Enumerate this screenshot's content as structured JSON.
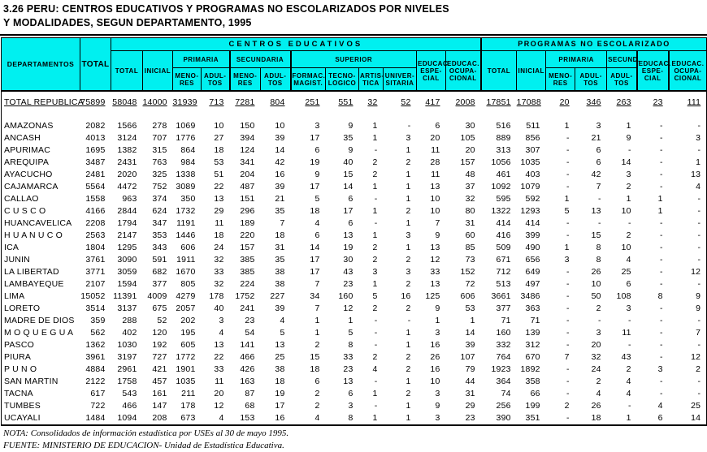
{
  "page": {
    "title_line1": "3.26   PERU: CENTROS EDUCATIVOS Y PROGRAMAS NO ESCOLARIZADOS POR NIVELES",
    "title_line2": "Y MODALIDADES, SEGUN DEPARTAMENTO, 1995"
  },
  "header": {
    "departamentos": "DEPARTAMENTOS",
    "total": "TOTAL",
    "centros_educativos": "CENTROS EDUCATIVOS",
    "programas_no_escolarizado": "PROGRAMAS NO ESCOLARIZADO",
    "ce": {
      "total": "TOTAL",
      "inicial": "INICIAL",
      "primaria": "PRIMARIA",
      "secundaria": "SECUNDARIA",
      "superior": "SUPERIOR",
      "prim_menores": "MENO-\nRES",
      "prim_adultos": "ADUL-\nTOS",
      "sec_menores": "MENO-\nRES",
      "sec_adultos": "ADUL-\nTOS",
      "formac_magist": "FORMAC.\nMAGIST.",
      "tecnologico": "TECNO-\nLOGICO",
      "artistica": "ARTIS-\nTICA",
      "universitaria": "UNIVER-\nSITARIA",
      "educ_especial": "EDUCAC.\nESPE-\nCIAL",
      "educ_ocupacional": "EDUCAC.\nOCUPA-\nCIONAL"
    },
    "pne": {
      "total": "TOTAL",
      "inicial": "INICIAL",
      "primaria": "PRIMARIA",
      "secund": "SECUND.",
      "prim_menores": "MENO-\nRES",
      "prim_adultos": "ADUL-\nTOS",
      "secund_adultos": "ADUL-\nTOS",
      "educ_especial": "EDUCAC.\nESPE-\nCIAL",
      "educ_ocupacional": "EDUCAC.\nOCUPA-\nCIONAL"
    }
  },
  "table": {
    "total_row": [
      "TOTAL REPUBLICA",
      "75899",
      "58048",
      "14000",
      "31939",
      "713",
      "7281",
      "804",
      "251",
      "551",
      "32",
      "52",
      "417",
      "2008",
      "17851",
      "17088",
      "20",
      "346",
      "263",
      "23",
      "111"
    ],
    "rows": [
      [
        "AMAZONAS",
        "2082",
        "1566",
        "278",
        "1069",
        "10",
        "150",
        "10",
        "3",
        "9",
        "1",
        "-",
        "6",
        "30",
        "516",
        "511",
        "1",
        "3",
        "1",
        "-",
        "-"
      ],
      [
        "ANCASH",
        "4013",
        "3124",
        "707",
        "1776",
        "27",
        "394",
        "39",
        "17",
        "35",
        "1",
        "3",
        "20",
        "105",
        "889",
        "856",
        "-",
        "21",
        "9",
        "-",
        "3"
      ],
      [
        "APURIMAC",
        "1695",
        "1382",
        "315",
        "864",
        "18",
        "124",
        "14",
        "6",
        "9",
        "-",
        "1",
        "11",
        "20",
        "313",
        "307",
        "-",
        "6",
        "-",
        "-",
        "-"
      ],
      [
        "AREQUIPA",
        "3487",
        "2431",
        "763",
        "984",
        "53",
        "341",
        "42",
        "19",
        "40",
        "2",
        "2",
        "28",
        "157",
        "1056",
        "1035",
        "-",
        "6",
        "14",
        "-",
        "1"
      ],
      [
        "AYACUCHO",
        "2481",
        "2020",
        "325",
        "1338",
        "51",
        "204",
        "16",
        "9",
        "15",
        "2",
        "1",
        "11",
        "48",
        "461",
        "403",
        "-",
        "42",
        "3",
        "-",
        "13"
      ],
      [
        "CAJAMARCA",
        "5564",
        "4472",
        "752",
        "3089",
        "22",
        "487",
        "39",
        "17",
        "14",
        "1",
        "1",
        "13",
        "37",
        "1092",
        "1079",
        "-",
        "7",
        "2",
        "-",
        "4"
      ],
      [
        "CALLAO",
        "1558",
        "963",
        "374",
        "350",
        "13",
        "151",
        "21",
        "5",
        "6",
        "-",
        "1",
        "10",
        "32",
        "595",
        "592",
        "1",
        "-",
        "1",
        "1",
        "-"
      ],
      [
        "C U S C O",
        "4166",
        "2844",
        "624",
        "1732",
        "29",
        "296",
        "35",
        "18",
        "17",
        "1",
        "2",
        "10",
        "80",
        "1322",
        "1293",
        "5",
        "13",
        "10",
        "1",
        "-"
      ],
      [
        "HUANCAVELICA",
        "2208",
        "1794",
        "347",
        "1191",
        "11",
        "189",
        "7",
        "4",
        "6",
        "-",
        "1",
        "7",
        "31",
        "414",
        "414",
        "-",
        "-",
        "-",
        "-",
        "-"
      ],
      [
        "H U A N U C O",
        "2563",
        "2147",
        "353",
        "1446",
        "18",
        "220",
        "18",
        "6",
        "13",
        "1",
        "3",
        "9",
        "60",
        "416",
        "399",
        "-",
        "15",
        "2",
        "-",
        "-"
      ],
      [
        "ICA",
        "1804",
        "1295",
        "343",
        "606",
        "24",
        "157",
        "31",
        "14",
        "19",
        "2",
        "1",
        "13",
        "85",
        "509",
        "490",
        "1",
        "8",
        "10",
        "-",
        "-"
      ],
      [
        "JUNIN",
        "3761",
        "3090",
        "591",
        "1911",
        "32",
        "385",
        "35",
        "17",
        "30",
        "2",
        "2",
        "12",
        "73",
        "671",
        "656",
        "3",
        "8",
        "4",
        "-",
        "-"
      ],
      [
        "LA LIBERTAD",
        "3771",
        "3059",
        "682",
        "1670",
        "33",
        "385",
        "38",
        "17",
        "43",
        "3",
        "3",
        "33",
        "152",
        "712",
        "649",
        "-",
        "26",
        "25",
        "-",
        "12"
      ],
      [
        "LAMBAYEQUE",
        "2107",
        "1594",
        "377",
        "805",
        "32",
        "224",
        "38",
        "7",
        "23",
        "1",
        "2",
        "13",
        "72",
        "513",
        "497",
        "-",
        "10",
        "6",
        "-",
        "-"
      ],
      [
        "LIMA",
        "15052",
        "11391",
        "4009",
        "4279",
        "178",
        "1752",
        "227",
        "34",
        "160",
        "5",
        "16",
        "125",
        "606",
        "3661",
        "3486",
        "-",
        "50",
        "108",
        "8",
        "9"
      ],
      [
        "LORETO",
        "3514",
        "3137",
        "675",
        "2057",
        "40",
        "241",
        "39",
        "7",
        "12",
        "2",
        "2",
        "9",
        "53",
        "377",
        "363",
        "-",
        "2",
        "3",
        "-",
        "9"
      ],
      [
        "MADRE DE DIOS",
        "359",
        "288",
        "52",
        "202",
        "3",
        "23",
        "4",
        "1",
        "1",
        "-",
        "-",
        "1",
        "1",
        "71",
        "71",
        "-",
        "-",
        "-",
        "-",
        "-"
      ],
      [
        "M O Q U E G U A",
        "562",
        "402",
        "120",
        "195",
        "4",
        "54",
        "5",
        "1",
        "5",
        "-",
        "1",
        "3",
        "14",
        "160",
        "139",
        "-",
        "3",
        "11",
        "-",
        "7"
      ],
      [
        "PASCO",
        "1362",
        "1030",
        "192",
        "605",
        "13",
        "141",
        "13",
        "2",
        "8",
        "-",
        "1",
        "16",
        "39",
        "332",
        "312",
        "-",
        "20",
        "-",
        "-",
        "-"
      ],
      [
        "PIURA",
        "3961",
        "3197",
        "727",
        "1772",
        "22",
        "466",
        "25",
        "15",
        "33",
        "2",
        "2",
        "26",
        "107",
        "764",
        "670",
        "7",
        "32",
        "43",
        "-",
        "12"
      ],
      [
        "P U N O",
        "4884",
        "2961",
        "421",
        "1901",
        "33",
        "426",
        "38",
        "18",
        "23",
        "4",
        "2",
        "16",
        "79",
        "1923",
        "1892",
        "-",
        "24",
        "2",
        "3",
        "2"
      ],
      [
        "SAN MARTIN",
        "2122",
        "1758",
        "457",
        "1035",
        "11",
        "163",
        "18",
        "6",
        "13",
        "-",
        "1",
        "10",
        "44",
        "364",
        "358",
        "-",
        "2",
        "4",
        "-",
        "-"
      ],
      [
        "TACNA",
        "617",
        "543",
        "161",
        "211",
        "20",
        "87",
        "19",
        "2",
        "6",
        "1",
        "2",
        "3",
        "31",
        "74",
        "66",
        "-",
        "4",
        "4",
        "-",
        "-"
      ],
      [
        "TUMBES",
        "722",
        "466",
        "147",
        "178",
        "12",
        "68",
        "17",
        "2",
        "3",
        "-",
        "1",
        "9",
        "29",
        "256",
        "199",
        "2",
        "26",
        "-",
        "4",
        "25"
      ],
      [
        "UCAYALI",
        "1484",
        "1094",
        "208",
        "673",
        "4",
        "153",
        "16",
        "4",
        "8",
        "1",
        "1",
        "3",
        "23",
        "390",
        "351",
        "-",
        "18",
        "1",
        "6",
        "14"
      ]
    ]
  },
  "footer": {
    "nota": "NOTA: Consolidados de información estadística por USEs al 30 de mayo 1995.",
    "fuente": "FUENTE: MINISTERIO DE EDUCACION- Unidad de Estadística Educativa."
  },
  "colors": {
    "header_bg": "#00F0F0",
    "border": "#000000",
    "text": "#000000"
  }
}
